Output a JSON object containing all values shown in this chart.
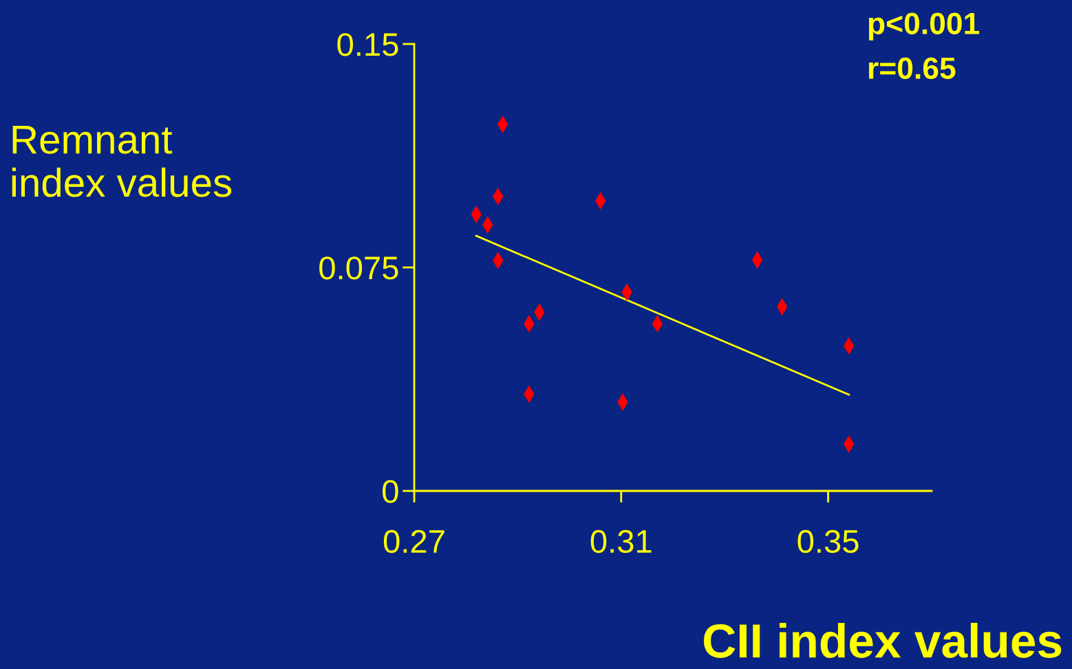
{
  "chart_data": {
    "type": "scatter",
    "xlabel": "CII index values",
    "ylabel": "Remnant\nindex values",
    "annotations": [
      "p<0.001",
      "r=0.65"
    ],
    "xlim": [
      0.27,
      0.37
    ],
    "xticks": [
      0.27,
      0.31,
      0.35
    ],
    "ylim": [
      0,
      0.15
    ],
    "yticks": [
      0,
      0.075,
      0.15
    ],
    "grid": false,
    "legend": false,
    "series": [
      {
        "marker": "diamond",
        "color": "#ff0000",
        "x": [
          0.282,
          0.2842,
          0.2862,
          0.2871,
          0.2862,
          0.2922,
          0.2942,
          0.2922,
          0.306,
          0.3111,
          0.3103,
          0.317,
          0.3363,
          0.3411,
          0.354,
          0.354
        ],
        "values": [
          0.0928,
          0.0893,
          0.0988,
          0.123,
          0.0773,
          0.0561,
          0.06,
          0.0325,
          0.0974,
          0.0667,
          0.0298,
          0.0561,
          0.0775,
          0.0618,
          0.0487,
          0.0157
        ]
      },
      {
        "type": "line",
        "color": "#ffff00",
        "x": [
          0.282,
          0.354
        ],
        "values": [
          0.0856,
          0.0323
        ]
      }
    ]
  }
}
